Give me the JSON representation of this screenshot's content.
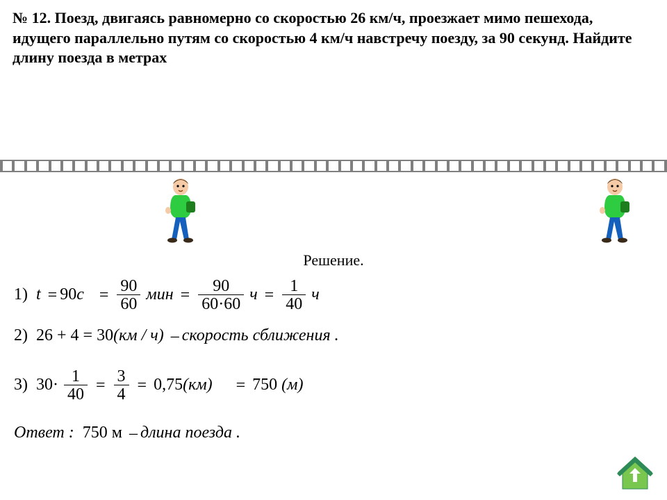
{
  "problem": {
    "number": "№ 12.",
    "text": "Поезд, двигаясь равномерно со скоростью 26 км/ч, проезжает мимо пешехода, идущего параллельно путям со скоростью 4 км/ч навстречу поезду, за 90 секунд. Найдите длину поезда в метрах"
  },
  "colors": {
    "rail": "#808080",
    "walker_shirt": "#2ecc40",
    "walker_pants": "#1560bd",
    "walker_skin": "#f5cba7",
    "walker_hair": "#5a3a1a",
    "home_roof": "#2e8b57",
    "home_wall": "#7ac74f",
    "home_arrow": "#ffffff"
  },
  "solution": {
    "label": "Решение.",
    "step1_prefix": "1)",
    "step1_t_var": "t",
    "step1_eq": "=",
    "step1_t_val": "90",
    "step1_t_unit": "с",
    "step1_f1_num": "90",
    "step1_f1_den": "60",
    "step1_u1": "мин",
    "step1_f2_num": "90",
    "step1_f2_den": "60·60",
    "step1_u2": "ч",
    "step1_f3_num": "1",
    "step1_f3_den": "40",
    "step1_u3": "ч",
    "step2_prefix": "2)",
    "step2_expr": "26 + 4 = 30",
    "step2_unit": "(км / ч)",
    "step2_dash": "–",
    "step2_desc": "скорость  сближения .",
    "step3_prefix": "3)",
    "step3_lead": "30·",
    "step3_f1_num": "1",
    "step3_f1_den": "40",
    "step3_f2_num": "3",
    "step3_f2_den": "4",
    "step3_val1": "0,75",
    "step3_u1": "(км)",
    "step3_val2": "750",
    "step3_u2": "(м)",
    "answer_label": "Ответ :",
    "answer_val": "750 м",
    "answer_dash": "–",
    "answer_desc": "длина поезда ."
  },
  "rail_tie_count": 56
}
